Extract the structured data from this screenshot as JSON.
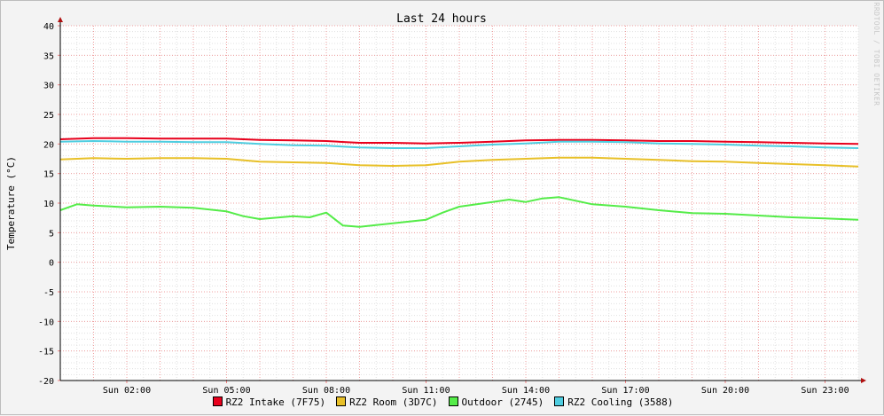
{
  "chart_data": {
    "type": "line",
    "title": "Last 24 hours",
    "ylabel": "Temperature (°C)",
    "watermark": "RRDTOOL / TOBI OETIKER",
    "ylim": [
      -20,
      40
    ],
    "y_ticks": [
      40,
      35,
      30,
      25,
      20,
      15,
      10,
      5,
      0,
      -5,
      -10,
      -15,
      -20
    ],
    "xlim": [
      0,
      24
    ],
    "x_ticks": [
      {
        "t": 2,
        "label": "Sun 02:00"
      },
      {
        "t": 5,
        "label": "Sun 05:00"
      },
      {
        "t": 8,
        "label": "Sun 08:00"
      },
      {
        "t": 11,
        "label": "Sun 11:00"
      },
      {
        "t": 14,
        "label": "Sun 14:00"
      },
      {
        "t": 17,
        "label": "Sun 17:00"
      },
      {
        "t": 20,
        "label": "Sun 20:00"
      },
      {
        "t": 23,
        "label": "Sun 23:00"
      }
    ],
    "grid": true,
    "legend": "bottom",
    "series": [
      {
        "name": "RZ2 Intake (7F75)",
        "color": "#e8001c",
        "x": [
          0,
          1,
          2,
          3,
          4,
          5,
          6,
          7,
          8,
          9,
          10,
          11,
          12,
          13,
          14,
          15,
          16,
          17,
          18,
          19,
          20,
          21,
          22,
          23,
          24
        ],
        "values": [
          20.8,
          21.0,
          21.0,
          20.9,
          20.9,
          20.9,
          20.7,
          20.6,
          20.5,
          20.2,
          20.2,
          20.1,
          20.2,
          20.4,
          20.6,
          20.7,
          20.7,
          20.6,
          20.5,
          20.5,
          20.4,
          20.3,
          20.2,
          20.1,
          20.0
        ]
      },
      {
        "name": "RZ2 Room (3D7C)",
        "color": "#e8c028",
        "x": [
          0,
          1,
          2,
          3,
          4,
          5,
          6,
          7,
          8,
          9,
          10,
          11,
          12,
          13,
          14,
          15,
          16,
          17,
          18,
          19,
          20,
          21,
          22,
          23,
          24
        ],
        "values": [
          17.4,
          17.6,
          17.5,
          17.6,
          17.6,
          17.5,
          17.0,
          16.9,
          16.8,
          16.4,
          16.3,
          16.4,
          17.0,
          17.3,
          17.5,
          17.7,
          17.7,
          17.5,
          17.3,
          17.1,
          17.0,
          16.8,
          16.6,
          16.4,
          16.2
        ]
      },
      {
        "name": "Outdoor (2745)",
        "color": "#54ec48",
        "x": [
          0,
          0.5,
          1,
          2,
          3,
          4,
          5,
          5.5,
          6,
          7,
          7.5,
          8,
          8.5,
          9,
          10,
          11,
          11.5,
          12,
          13,
          13.5,
          14,
          14.5,
          15,
          16,
          17,
          18,
          19,
          20,
          21,
          22,
          23,
          24
        ],
        "values": [
          8.8,
          9.8,
          9.6,
          9.3,
          9.4,
          9.2,
          8.6,
          7.8,
          7.3,
          7.8,
          7.6,
          8.4,
          6.2,
          6.0,
          6.6,
          7.2,
          8.4,
          9.4,
          10.2,
          10.6,
          10.2,
          10.8,
          11.0,
          9.8,
          9.4,
          8.8,
          8.3,
          8.2,
          7.9,
          7.6,
          7.4,
          7.2
        ]
      },
      {
        "name": "RZ2 Cooling (3588)",
        "color": "#4ecde0",
        "x": [
          0,
          1,
          2,
          3,
          4,
          5,
          6,
          7,
          8,
          9,
          10,
          11,
          12,
          13,
          14,
          15,
          16,
          17,
          18,
          19,
          20,
          21,
          22,
          23,
          24
        ],
        "values": [
          20.4,
          20.5,
          20.4,
          20.4,
          20.3,
          20.3,
          20.0,
          19.8,
          19.7,
          19.4,
          19.3,
          19.3,
          19.6,
          19.9,
          20.1,
          20.4,
          20.4,
          20.3,
          20.1,
          20.0,
          19.9,
          19.7,
          19.6,
          19.4,
          19.3
        ]
      }
    ]
  }
}
